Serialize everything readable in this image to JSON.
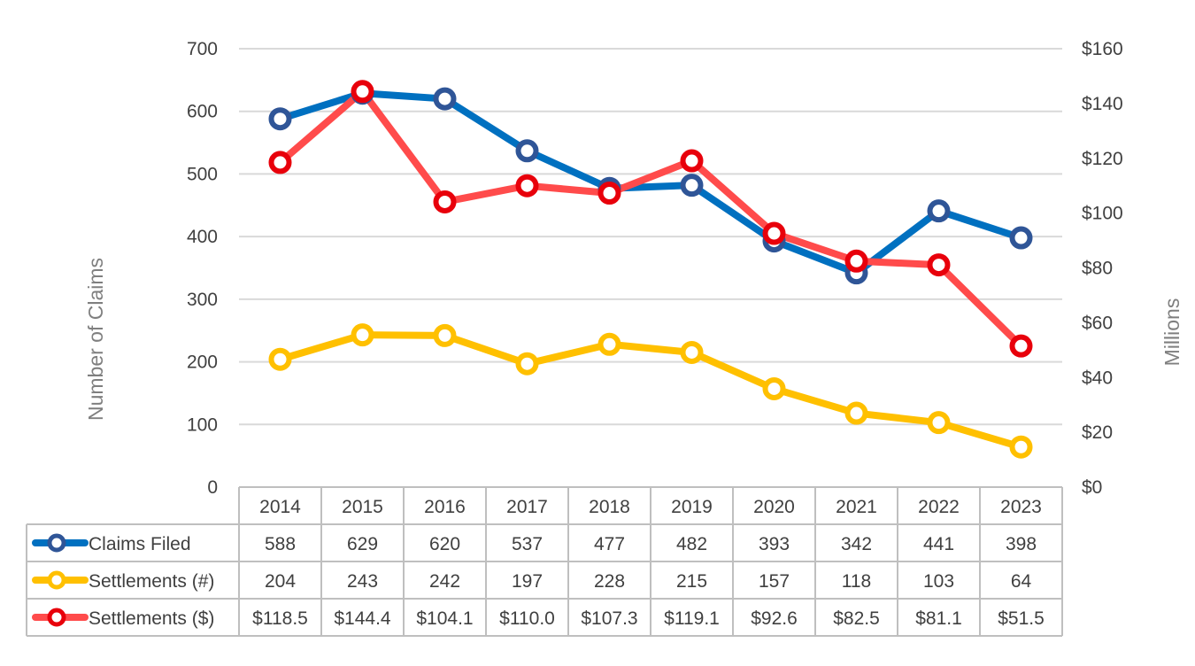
{
  "chart_data": {
    "type": "line",
    "categories": [
      "2014",
      "2015",
      "2016",
      "2017",
      "2018",
      "2019",
      "2020",
      "2021",
      "2022",
      "2023"
    ],
    "ylabel": "Number of Claims",
    "y2label": "Millions",
    "ylim": [
      0,
      700
    ],
    "y2lim": [
      0,
      160
    ],
    "yticks": [
      "0",
      "100",
      "200",
      "300",
      "400",
      "500",
      "600",
      "700"
    ],
    "y2ticks": [
      "$0",
      "$20",
      "$40",
      "$60",
      "$80",
      "$100",
      "$120",
      "$140",
      "$160"
    ],
    "grid": true,
    "legend": "data-table",
    "series": [
      {
        "name": "Claims Filed",
        "axis": "left",
        "color": "#0070C0",
        "marker_color": "#2F5597",
        "values": [
          588,
          629,
          620,
          537,
          477,
          482,
          393,
          342,
          441,
          398
        ],
        "labels": [
          "588",
          "629",
          "620",
          "537",
          "477",
          "482",
          "393",
          "342",
          "441",
          "398"
        ]
      },
      {
        "name": "Settlements (#)",
        "axis": "left",
        "color": "#FFC000",
        "marker_color": "#FFC000",
        "values": [
          204,
          243,
          242,
          197,
          228,
          215,
          157,
          118,
          103,
          64
        ],
        "labels": [
          "204",
          "243",
          "242",
          "197",
          "228",
          "215",
          "157",
          "118",
          "103",
          "64"
        ]
      },
      {
        "name": "Settlements ($)",
        "axis": "right",
        "color": "#FF4B4B",
        "marker_color": "#E8000B",
        "values": [
          118.5,
          144.4,
          104.1,
          110.0,
          107.3,
          119.1,
          92.6,
          82.5,
          81.1,
          51.5
        ],
        "labels": [
          "$118.5",
          "$144.4",
          "$104.1",
          "$110.0",
          "$107.3",
          "$119.1",
          "$92.6",
          "$82.5",
          "$81.1",
          "$51.5"
        ]
      }
    ]
  }
}
